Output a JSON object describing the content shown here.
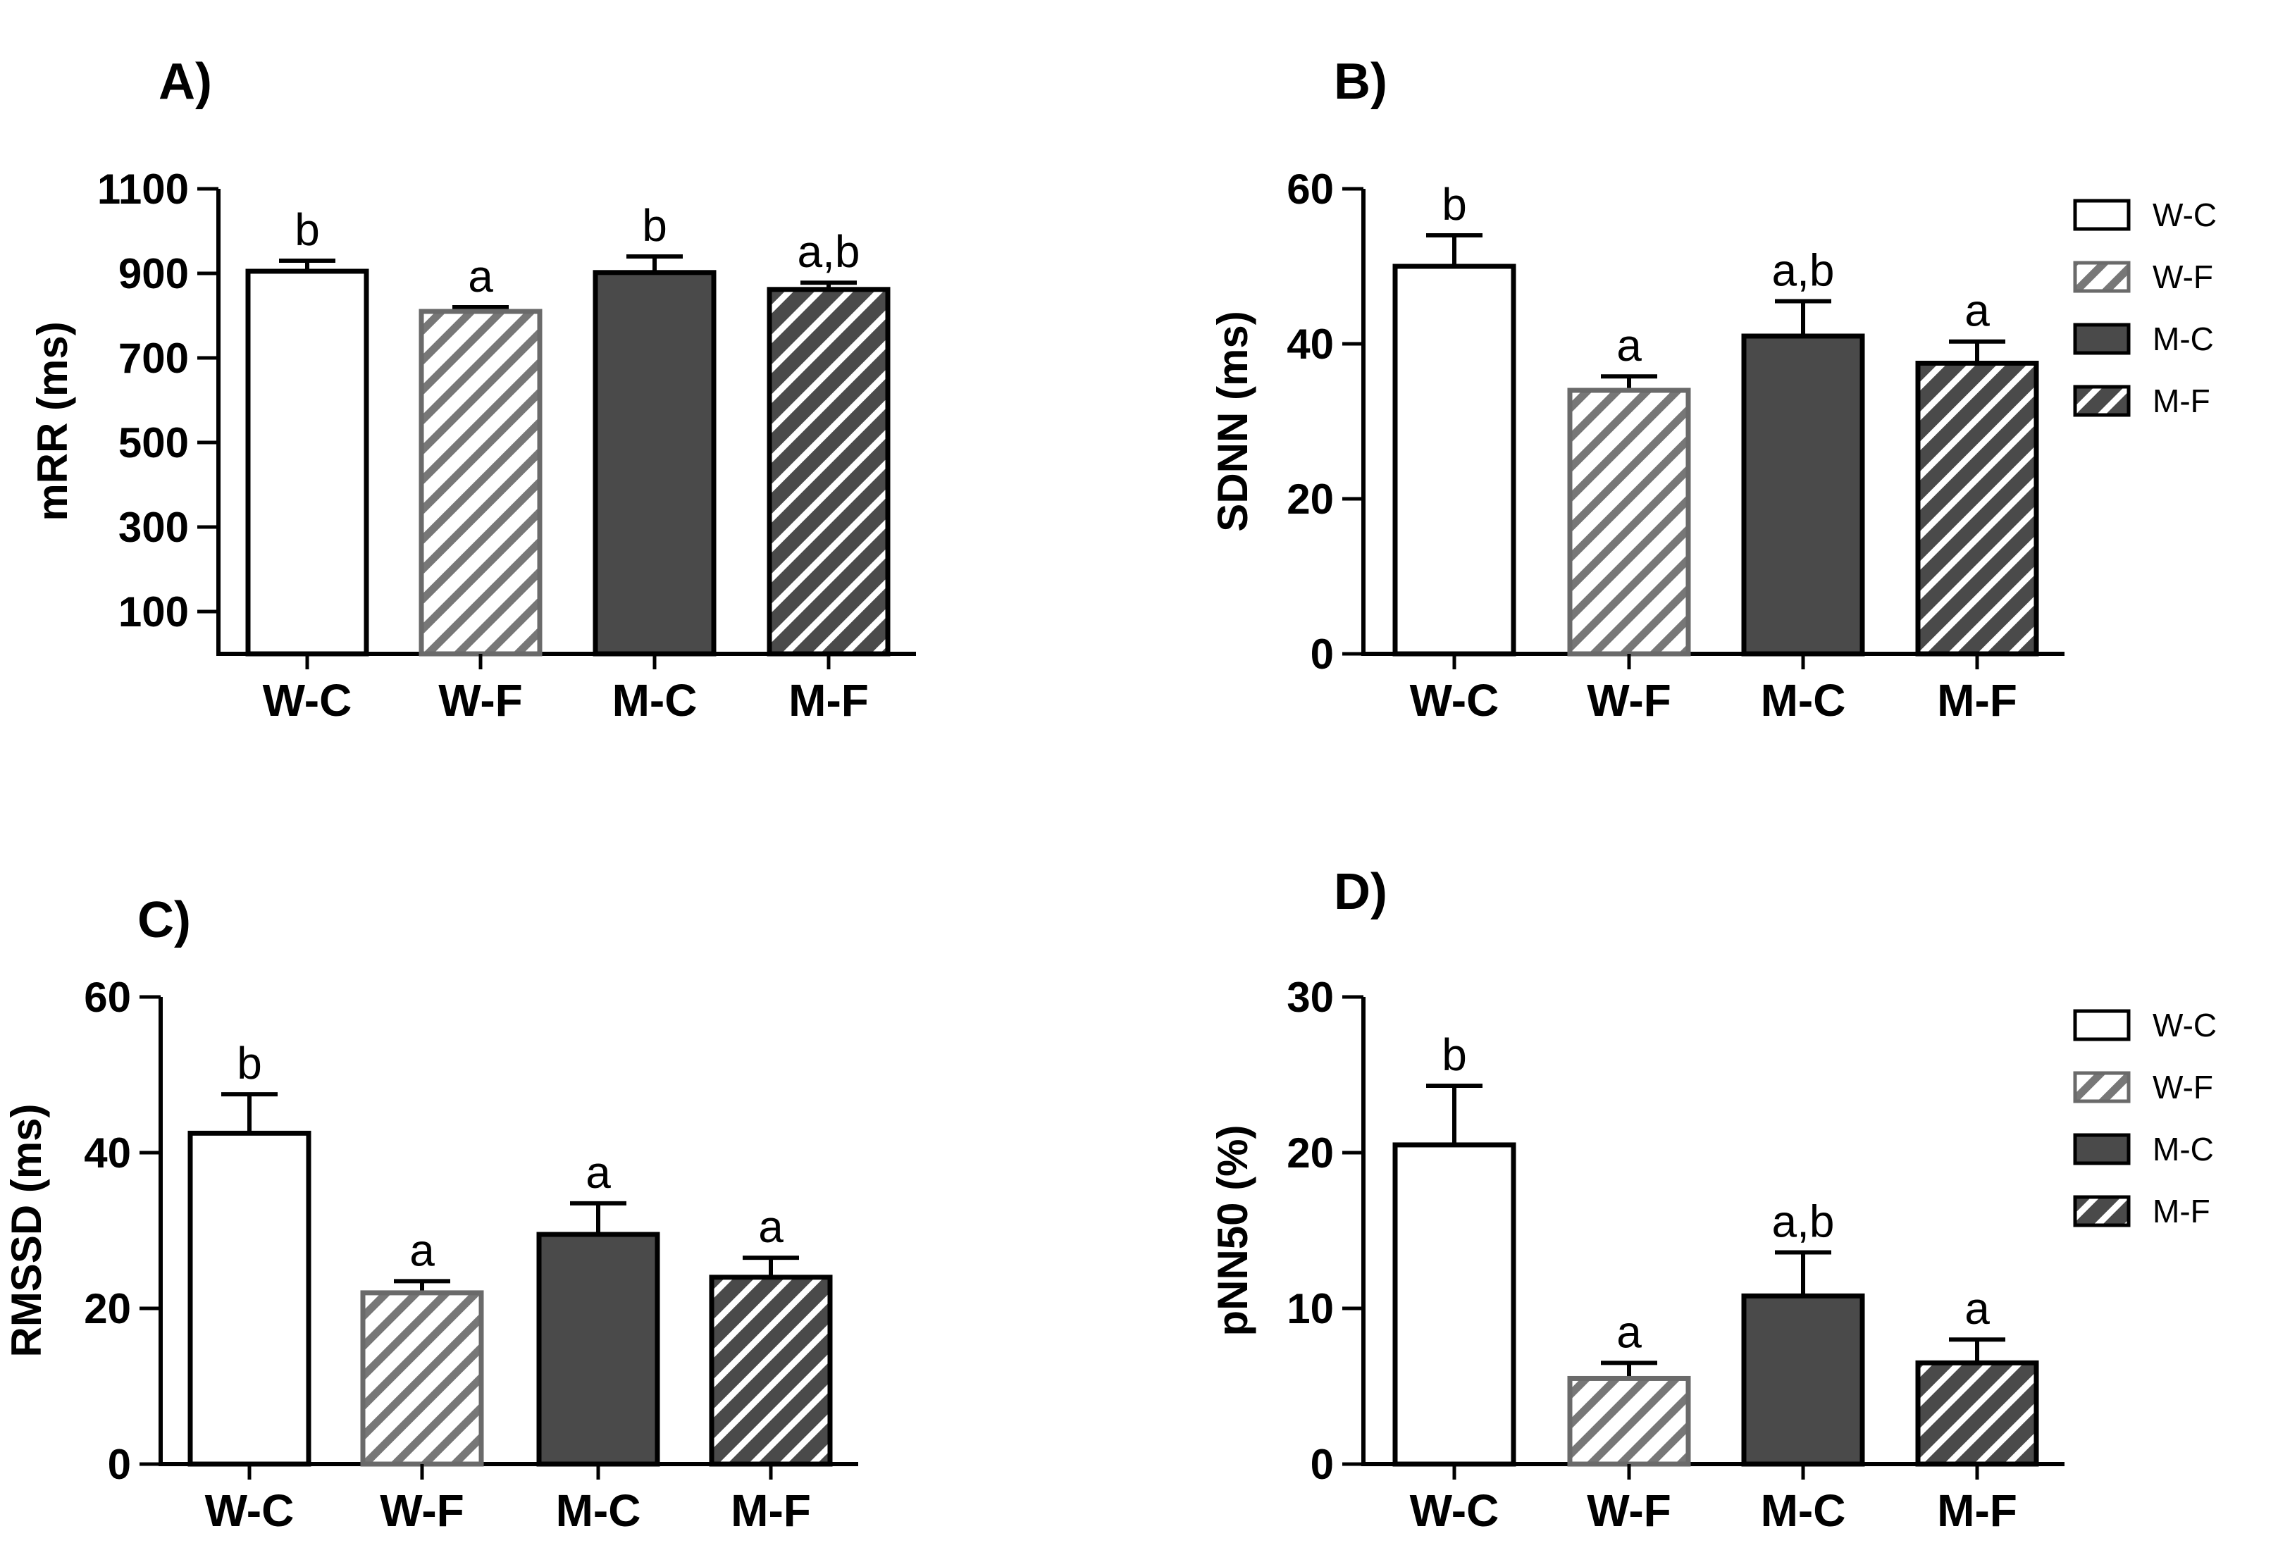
{
  "colors": {
    "white_bar": "#ffffff",
    "dark_bar": "#4a4a4a",
    "light_hatch": "#777777",
    "dark_hatch_bg": "#4a4a4a",
    "stroke": "#000000"
  },
  "legend": {
    "entries": [
      {
        "label": "W-C",
        "style": "white"
      },
      {
        "label": "W-F",
        "style": "light-hatch"
      },
      {
        "label": "M-C",
        "style": "dark"
      },
      {
        "label": "M-F",
        "style": "dark-hatch"
      }
    ]
  },
  "chart_data": [
    {
      "panel": "A)",
      "type": "bar",
      "ylabel": "mRR (ms)",
      "categories": [
        "W-C",
        "W-F",
        "M-C",
        "M-F"
      ],
      "values": [
        905,
        810,
        902,
        862
      ],
      "errors": [
        25,
        10,
        38,
        16
      ],
      "significance": [
        "b",
        "a",
        "b",
        "a,b"
      ],
      "ylim": [
        0,
        1100
      ],
      "yticks": [
        100,
        300,
        500,
        700,
        900,
        1100
      ],
      "styles": [
        "white",
        "light-hatch",
        "dark",
        "dark-hatch"
      ]
    },
    {
      "panel": "B)",
      "type": "bar",
      "ylabel": "SDNN (ms)",
      "categories": [
        "W-C",
        "W-F",
        "M-C",
        "M-F"
      ],
      "values": [
        50,
        34,
        41,
        37.5
      ],
      "errors": [
        4,
        1.8,
        4.5,
        2.8
      ],
      "significance": [
        "b",
        "a",
        "a,b",
        "a"
      ],
      "ylim": [
        0,
        60
      ],
      "yticks": [
        0,
        20,
        40,
        60
      ],
      "styles": [
        "white",
        "light-hatch",
        "dark",
        "dark-hatch"
      ],
      "show_legend": true
    },
    {
      "panel": "C)",
      "type": "bar",
      "ylabel": "RMSSD (ms)",
      "categories": [
        "W-C",
        "W-F",
        "M-C",
        "M-F"
      ],
      "values": [
        42.5,
        22,
        29.5,
        24
      ],
      "errors": [
        5,
        1.5,
        4,
        2.5
      ],
      "significance": [
        "b",
        "a",
        "a",
        "a"
      ],
      "ylim": [
        0,
        60
      ],
      "yticks": [
        0,
        20,
        40,
        60
      ],
      "styles": [
        "white",
        "light-hatch",
        "dark",
        "dark-hatch"
      ]
    },
    {
      "panel": "D)",
      "type": "bar",
      "ylabel": "pNN50 (%)",
      "categories": [
        "W-C",
        "W-F",
        "M-C",
        "M-F"
      ],
      "values": [
        20.5,
        5.5,
        10.8,
        6.5
      ],
      "errors": [
        3.8,
        1,
        2.8,
        1.5
      ],
      "significance": [
        "b",
        "a",
        "a,b",
        "a"
      ],
      "ylim": [
        0,
        30
      ],
      "yticks": [
        0,
        10,
        20,
        30
      ],
      "styles": [
        "white",
        "light-hatch",
        "dark",
        "dark-hatch"
      ],
      "show_legend": true
    }
  ]
}
